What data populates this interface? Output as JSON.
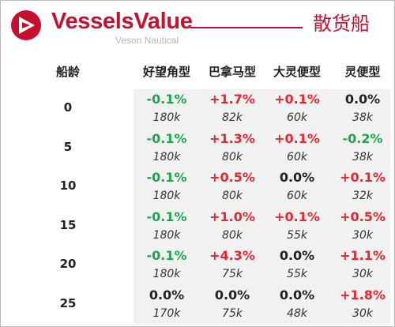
{
  "header": {
    "brand": "VesselsValue",
    "sub_brand": "Veson Nautical",
    "title": "散货船"
  },
  "colors": {
    "brand_red": "#c8102e",
    "positive": "#e8262e",
    "negative": "#1ca84a",
    "neutral": "#222222"
  },
  "table": {
    "age_header": "船龄",
    "columns": [
      "好望角型",
      "巴拿马型",
      "大灵便型",
      "灵便型"
    ],
    "rows": [
      {
        "age": "0",
        "changes": [
          "-0.1%",
          "+1.7%",
          "+0.1%",
          "0.0%"
        ],
        "values": [
          "180k",
          "82k",
          "60k",
          "38k"
        ]
      },
      {
        "age": "5",
        "changes": [
          "-0.1%",
          "+1.3%",
          "+0.1%",
          "-0.2%"
        ],
        "values": [
          "180k",
          "80k",
          "60k",
          "38k"
        ]
      },
      {
        "age": "10",
        "changes": [
          "-0.1%",
          "+0.5%",
          "0.0%",
          "+0.1%"
        ],
        "values": [
          "180k",
          "80k",
          "60k",
          "32k"
        ]
      },
      {
        "age": "15",
        "changes": [
          "-0.1%",
          "+1.0%",
          "+0.1%",
          "+0.5%"
        ],
        "values": [
          "180k",
          "80k",
          "55k",
          "30k"
        ]
      },
      {
        "age": "20",
        "changes": [
          "-0.1%",
          "+4.3%",
          "0.0%",
          "+1.1%"
        ],
        "values": [
          "180k",
          "75k",
          "55k",
          "30k"
        ]
      },
      {
        "age": "25",
        "changes": [
          "0.0%",
          "0.0%",
          "0.0%",
          "+1.8%"
        ],
        "values": [
          "170k",
          "75k",
          "48k",
          "30k"
        ]
      }
    ]
  }
}
